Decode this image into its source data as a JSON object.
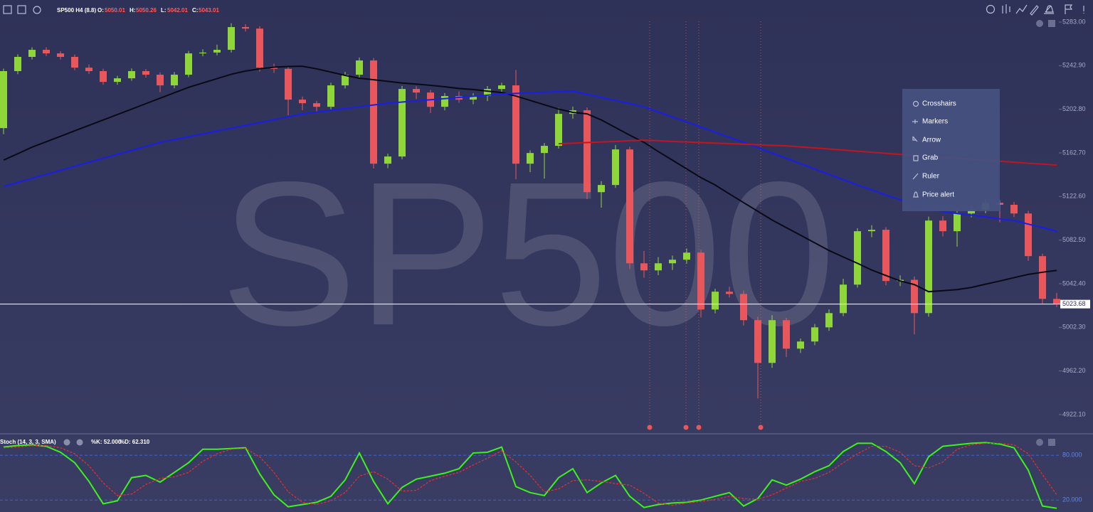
{
  "header": {
    "symbol": "SP500 H4 (8.8)",
    "ohlc": [
      {
        "label": "O:",
        "value": "5050.01"
      },
      {
        "label": "H:",
        "value": "5050.26"
      },
      {
        "label": "L:",
        "value": "5042.01"
      },
      {
        "label": "C:",
        "value": "5043.01"
      }
    ]
  },
  "chart_data": [
    {
      "type": "candlestick",
      "watermark": "SP500",
      "up_color": "#8fd63a",
      "down_color": "#e8575c",
      "ylim": [
        4905.1,
        5303.3
      ],
      "yticks": [
        {
          "value": 5283,
          "label": "5283.00"
        },
        {
          "value": 5242.9,
          "label": "5242.90"
        },
        {
          "value": 5202.8,
          "label": "5202.80"
        },
        {
          "value": 5162.7,
          "label": "5162.70"
        },
        {
          "value": 5122.6,
          "label": "5122.60"
        },
        {
          "value": 5082.5,
          "label": "5082.50"
        },
        {
          "value": 5042.4,
          "label": "5042.40"
        },
        {
          "value": 5002.3,
          "label": "5002.30"
        },
        {
          "value": 4962.2,
          "label": "4962.20"
        },
        {
          "value": 4922.1,
          "label": "4922.10"
        }
      ],
      "grid": false,
      "last_price": {
        "value": 5023.68,
        "label": "5023.68"
      },
      "ohlc": [
        [
          5185.5,
          5240.2,
          5180.0,
          5237.9
        ],
        [
          5237.9,
          5253.4,
          5235.1,
          5251.0
        ],
        [
          5251.0,
          5259.8,
          5248.6,
          5257.5
        ],
        [
          5257.5,
          5259.9,
          5251.7,
          5254.2
        ],
        [
          5254.2,
          5256.3,
          5248.5,
          5251.0
        ],
        [
          5251.0,
          5253.1,
          5238.7,
          5241.1
        ],
        [
          5241.1,
          5244.0,
          5235.2,
          5237.9
        ],
        [
          5237.9,
          5240.1,
          5225.3,
          5228.0
        ],
        [
          5228.0,
          5233.6,
          5225.4,
          5231.3
        ],
        [
          5231.3,
          5240.4,
          5229.0,
          5237.9
        ],
        [
          5237.9,
          5239.8,
          5231.9,
          5234.6
        ],
        [
          5234.6,
          5236.8,
          5218.6,
          5224.8
        ],
        [
          5224.8,
          5237.0,
          5222.1,
          5234.6
        ],
        [
          5234.6,
          5256.5,
          5232.3,
          5254.2
        ],
        [
          5254.2,
          5257.9,
          5251.6,
          5255.0
        ],
        [
          5255.0,
          5262.3,
          5252.4,
          5257.5
        ],
        [
          5257.5,
          5282.0,
          5255.0,
          5278.4
        ],
        [
          5278.4,
          5281.1,
          5274.3,
          5277.0
        ],
        [
          5277.0,
          5279.2,
          5237.5,
          5241.1
        ],
        [
          5241.1,
          5244.8,
          5236.4,
          5240.0
        ],
        [
          5240.0,
          5242.2,
          5197.3,
          5211.7
        ],
        [
          5211.7,
          5214.5,
          5202.0,
          5208.4
        ],
        [
          5208.4,
          5210.6,
          5200.9,
          5205.1
        ],
        [
          5205.1,
          5227.3,
          5202.8,
          5224.8
        ],
        [
          5224.8,
          5237.2,
          5222.0,
          5234.6
        ],
        [
          5234.6,
          5250.4,
          5231.9,
          5247.7
        ],
        [
          5247.7,
          5250.0,
          5148.3,
          5152.8
        ],
        [
          5152.8,
          5162.0,
          5148.7,
          5159.4
        ],
        [
          5159.4,
          5224.3,
          5156.8,
          5221.5
        ],
        [
          5221.5,
          5224.0,
          5212.2,
          5218.2
        ],
        [
          5218.2,
          5220.6,
          5199.4,
          5205.1
        ],
        [
          5205.1,
          5217.7,
          5201.8,
          5215.0
        ],
        [
          5215.0,
          5219.3,
          5208.9,
          5211.7
        ],
        [
          5211.7,
          5217.6,
          5207.5,
          5215.0
        ],
        [
          5215.0,
          5224.2,
          5210.4,
          5221.5
        ],
        [
          5221.5,
          5227.3,
          5217.0,
          5224.8
        ],
        [
          5224.8,
          5239.0,
          5138.6,
          5152.8
        ],
        [
          5152.8,
          5165.1,
          5145.0,
          5162.6
        ],
        [
          5162.6,
          5171.8,
          5139.0,
          5169.2
        ],
        [
          5169.2,
          5204.1,
          5166.7,
          5198.6
        ],
        [
          5198.6,
          5205.3,
          5194.2,
          5201.9
        ],
        [
          5201.9,
          5204.5,
          5120.1,
          5126.6
        ],
        [
          5126.6,
          5136.8,
          5112.4,
          5133.2
        ],
        [
          5133.2,
          5170.0,
          5130.6,
          5165.9
        ],
        [
          5165.9,
          5168.2,
          5055.9,
          5061.2
        ],
        [
          5061.2,
          5072.5,
          5048.0,
          5054.7
        ],
        [
          5054.7,
          5066.9,
          5050.3,
          5061.2
        ],
        [
          5061.2,
          5068.3,
          5055.0,
          5064.5
        ],
        [
          5064.5,
          5074.8,
          5061.0,
          5071.0
        ],
        [
          5071.0,
          5073.6,
          5011.4,
          5018.7
        ],
        [
          5018.7,
          5037.8,
          5015.2,
          5035.1
        ],
        [
          5035.1,
          5039.6,
          5029.8,
          5033.0
        ],
        [
          5033.0,
          5036.2,
          5004.0,
          5008.9
        ],
        [
          5008.9,
          5012.1,
          4937.0,
          4969.6
        ],
        [
          4969.6,
          5013.5,
          4965.0,
          5008.9
        ],
        [
          5008.9,
          5011.0,
          4975.1,
          4982.7
        ],
        [
          4982.7,
          4992.0,
          4978.8,
          4989.3
        ],
        [
          4989.3,
          5005.4,
          4985.9,
          5002.3
        ],
        [
          5002.3,
          5018.9,
          4999.0,
          5015.4
        ],
        [
          5015.4,
          5047.0,
          5012.6,
          5041.6
        ],
        [
          5041.6,
          5093.5,
          5038.8,
          5090.7
        ],
        [
          5090.7,
          5096.3,
          5085.2,
          5092.0
        ],
        [
          5092.0,
          5094.5,
          5041.0,
          5044.9
        ],
        [
          5044.9,
          5050.2,
          5040.3,
          5046.0
        ],
        [
          5046.0,
          5049.0,
          4995.8,
          5015.4
        ],
        [
          5015.4,
          5104.1,
          5012.2,
          5100.5
        ],
        [
          5100.5,
          5104.6,
          5086.0,
          5090.7
        ],
        [
          5090.7,
          5111.0,
          5076.5,
          5107.0
        ],
        [
          5107.0,
          5114.2,
          5103.5,
          5110.3
        ],
        [
          5110.3,
          5120.0,
          5107.2,
          5116.8
        ],
        [
          5116.8,
          5119.4,
          5099.0,
          5115.0
        ],
        [
          5115.0,
          5117.6,
          5103.8,
          5107.0
        ],
        [
          5107.0,
          5109.5,
          5063.5,
          5067.8
        ],
        [
          5067.8,
          5070.0,
          5024.2,
          5028.5
        ],
        [
          5028.5,
          5034.0,
          5021.0,
          5023.7
        ]
      ],
      "series": [
        {
          "color": "#0a0a14",
          "values": [
            5156.1,
            5162,
            5168,
            5173,
            5178,
            5183,
            5188,
            5193,
            5198,
            5203,
            5208,
            5213,
            5218,
            5223,
            5227,
            5231,
            5235,
            5238,
            5240,
            5241.5,
            5242.2,
            5242.4,
            5240,
            5237,
            5234,
            5231.3,
            5230,
            5228.5,
            5227,
            5226,
            5224.8,
            5223.5,
            5222,
            5221,
            5219.5,
            5218.2,
            5215,
            5211,
            5207,
            5203,
            5200,
            5198.6,
            5193,
            5186,
            5179,
            5172.4,
            5164,
            5156,
            5148,
            5140,
            5133.2,
            5125,
            5117,
            5109,
            5101,
            5094,
            5087,
            5080,
            5073,
            5067,
            5061.2,
            5055,
            5050,
            5045,
            5041.6,
            5035.1,
            5036,
            5037,
            5039,
            5042,
            5044.9,
            5048,
            5051,
            5053,
            5054.7
          ]
        },
        {
          "color": "#1a1ee8",
          "values": [
            5131.9,
            5135.6,
            5139.3,
            5143,
            5146.7,
            5150.4,
            5154.1,
            5157.8,
            5161.5,
            5165,
            5168.7,
            5172.4,
            5175,
            5177.6,
            5180.2,
            5182.8,
            5185.4,
            5188,
            5190.6,
            5193.2,
            5195.9,
            5198.6,
            5200.2,
            5201.9,
            5203.5,
            5205.1,
            5206.8,
            5208.4,
            5209.5,
            5210.5,
            5211.6,
            5212.6,
            5213.7,
            5214.8,
            5215.8,
            5216.9,
            5217.4,
            5217.9,
            5218.5,
            5219,
            5219.5,
            5216.6,
            5213.7,
            5210.9,
            5208,
            5205.1,
            5200.4,
            5195.7,
            5191.1,
            5186.4,
            5181.7,
            5177,
            5172.4,
            5167.5,
            5162.6,
            5157.7,
            5152.8,
            5147.9,
            5143,
            5138.1,
            5133.2,
            5128.6,
            5124,
            5119.5,
            5114.9,
            5110.3,
            5108.7,
            5107,
            5105.4,
            5103.8,
            5102.1,
            5100.5,
            5097.2,
            5094,
            5090.7
          ]
        },
        {
          "color": "#c0161e",
          "values": [
            null,
            null,
            null,
            null,
            null,
            null,
            null,
            null,
            null,
            null,
            null,
            null,
            null,
            null,
            null,
            null,
            null,
            null,
            null,
            null,
            null,
            null,
            null,
            null,
            null,
            null,
            null,
            null,
            null,
            null,
            null,
            null,
            null,
            null,
            null,
            null,
            null,
            null,
            null,
            5171.1,
            5171.6,
            5172.2,
            5172.8,
            5173.3,
            5173.9,
            5174.4,
            5173.9,
            5173.3,
            5172.8,
            5172.2,
            5171.7,
            5171.2,
            5170.7,
            5170.2,
            5169.7,
            5169.2,
            5168.2,
            5167.3,
            5166.3,
            5165.3,
            5164.3,
            5163.3,
            5162.3,
            5161.3,
            5160.4,
            5159.4,
            5158.5,
            5157.6,
            5156.8,
            5155.9,
            5155,
            5154.1,
            5153.2,
            5152.4,
            5151.5
          ]
        }
      ]
    },
    {
      "type": "line",
      "title": "Stoch (14, 3, 3, SMA)",
      "k_label": "%K: 52.000",
      "d_label": "%D: 62.310",
      "ylim": [
        4,
        104
      ],
      "yticks": [
        {
          "value": 80,
          "label": "80.000"
        },
        {
          "value": 20,
          "label": "20.000"
        }
      ],
      "series": [
        {
          "color": "#3cf21a",
          "dash": false,
          "values": [
            91,
            93,
            94,
            92,
            84,
            70,
            45,
            15,
            19,
            50,
            53,
            44,
            57,
            70,
            88,
            88,
            89,
            90,
            55,
            27,
            11,
            14,
            17,
            25,
            47,
            83,
            45,
            15,
            37,
            48,
            52,
            56,
            62,
            83,
            84,
            91,
            38,
            30,
            26,
            50,
            62,
            30,
            43,
            53,
            25,
            10,
            14,
            16,
            17,
            20,
            25,
            30,
            12,
            22,
            47,
            40,
            48,
            58,
            66,
            85,
            96,
            96,
            85,
            70,
            42,
            78,
            92,
            94,
            96,
            97,
            95,
            90,
            60,
            12,
            9
          ]
        },
        {
          "color": "#e03030",
          "dash": true,
          "values": [
            90,
            91,
            93,
            93,
            90,
            82,
            66,
            43,
            26,
            28,
            41,
            49,
            51,
            57,
            72,
            82,
            88,
            89,
            78,
            57,
            31,
            17,
            14,
            19,
            30,
            52,
            58,
            48,
            32,
            33,
            46,
            52,
            57,
            67,
            76,
            86,
            71,
            53,
            31,
            35,
            46,
            47,
            45,
            42,
            40,
            29,
            16,
            13,
            16,
            18,
            21,
            25,
            22,
            21,
            27,
            36,
            45,
            49,
            57,
            70,
            82,
            92,
            92,
            84,
            66,
            63,
            71,
            88,
            94,
            96,
            96,
            94,
            82,
            54,
            27
          ]
        }
      ]
    }
  ],
  "context_menu": {
    "items": [
      "Crosshairs",
      "Markers",
      "Arrow",
      "Grab",
      "Ruler",
      "Price alert"
    ]
  }
}
